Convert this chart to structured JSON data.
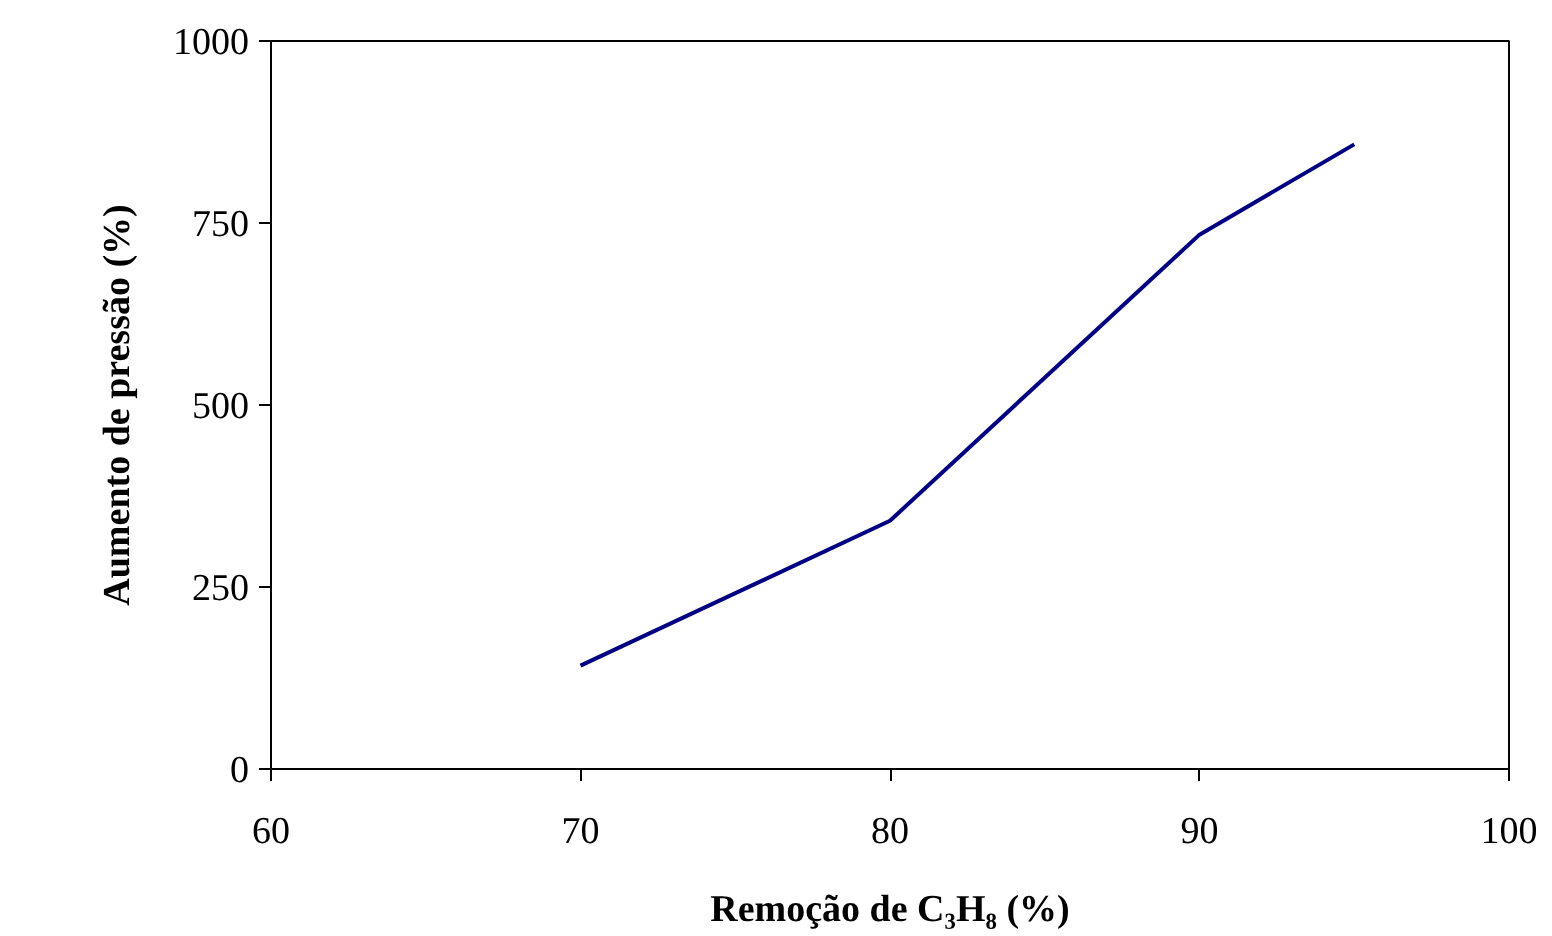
{
  "chart_data": {
    "type": "line",
    "xlabel": "Remoção de C₃H₈ (%)",
    "ylabel": "Aumento de pressão (%)",
    "x": [
      70,
      80,
      90,
      95
    ],
    "series": [
      {
        "color": "#000080",
        "values": [
          142,
          341,
          734,
          858
        ]
      }
    ],
    "xlim": [
      60,
      100
    ],
    "xticks": [
      60,
      70,
      80,
      90,
      100
    ],
    "ylim": [
      0,
      1000
    ],
    "yticks": [
      0,
      250,
      500,
      750,
      1000
    ],
    "grid": false,
    "marker": "none",
    "line_style": "solid"
  }
}
